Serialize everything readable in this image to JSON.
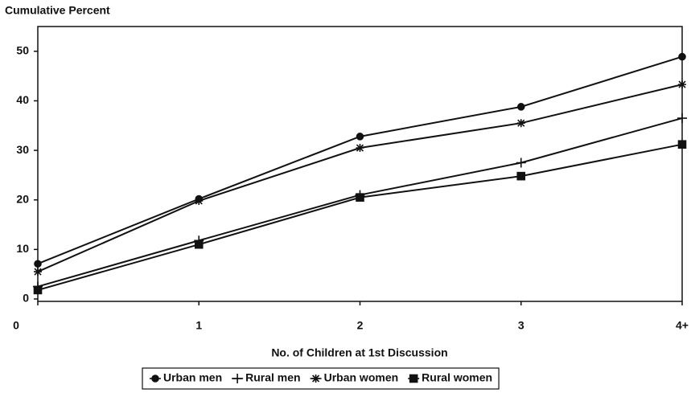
{
  "chart_data": {
    "type": "line",
    "y_axis_label": "Cumulative Percent",
    "x_axis_label": "No. of Children at 1st Discussion",
    "categories": [
      "0",
      "1",
      "2",
      "3",
      "4+"
    ],
    "series": [
      {
        "name": "Urban men",
        "color": "#111111",
        "marker": "circle",
        "values": [
          7.1,
          20.2,
          32.8,
          38.8,
          48.9
        ]
      },
      {
        "name": "Rural men",
        "color": "#111111",
        "marker": "plus",
        "values": [
          2.5,
          11.8,
          21,
          27.5,
          36.5
        ]
      },
      {
        "name": "Urban women",
        "color": "#111111",
        "marker": "star",
        "values": [
          5.5,
          19.8,
          30.5,
          35.5,
          43.3
        ]
      },
      {
        "name": "Rural women",
        "color": "#111111",
        "marker": "square",
        "values": [
          1.8,
          11,
          20.5,
          24.8,
          31.2
        ]
      }
    ],
    "ylim": [
      0,
      55
    ],
    "yticks": [
      0,
      10,
      20,
      30,
      40,
      50
    ],
    "grid": false
  }
}
